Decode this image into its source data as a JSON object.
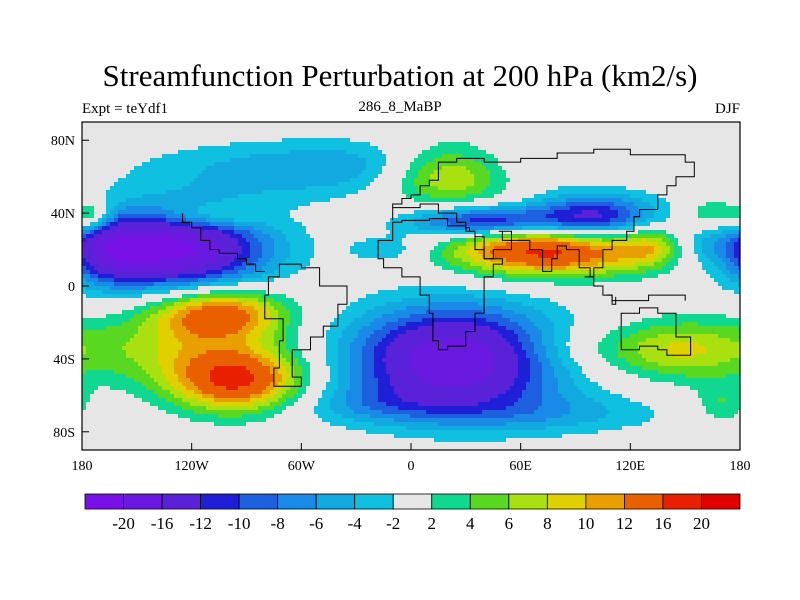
{
  "chart_data": {
    "type": "heatmap",
    "title": "Streamfunction Perturbation at 200 hPa (km2/s)",
    "left_label": "Expt = teYdf1",
    "center_label": "286_8_MaBP",
    "right_label": "DJF",
    "x_ticks": [
      "180",
      "120W",
      "60W",
      "0",
      "60E",
      "120E",
      "180"
    ],
    "x_tick_values": [
      -180,
      -120,
      -60,
      0,
      60,
      120,
      180
    ],
    "y_ticks": [
      "80N",
      "40N",
      "0",
      "40S",
      "80S"
    ],
    "y_tick_values": [
      80,
      40,
      0,
      -40,
      -80
    ],
    "xlim": [
      -180,
      180
    ],
    "ylim": [
      -90,
      90
    ],
    "levels": [
      -20,
      -16,
      -12,
      -10,
      -8,
      -6,
      -4,
      -2,
      2,
      4,
      6,
      8,
      10,
      12,
      16,
      20
    ],
    "colorbar_labels": [
      "-20",
      "-16",
      "-12",
      "-10",
      "-8",
      "-6",
      "-4",
      "-2",
      "2",
      "4",
      "6",
      "8",
      "10",
      "12",
      "16",
      "20"
    ],
    "colors": [
      "#7a10e8",
      "#6a1ae0",
      "#5a22d8",
      "#1f1fd8",
      "#1e5fe0",
      "#1a8ae8",
      "#12a8e0",
      "#10c0e0",
      "#e6e6e6",
      "#10d890",
      "#58d820",
      "#a8e010",
      "#e0d000",
      "#e8a000",
      "#e86000",
      "#e82000",
      "#e00000"
    ]
  }
}
